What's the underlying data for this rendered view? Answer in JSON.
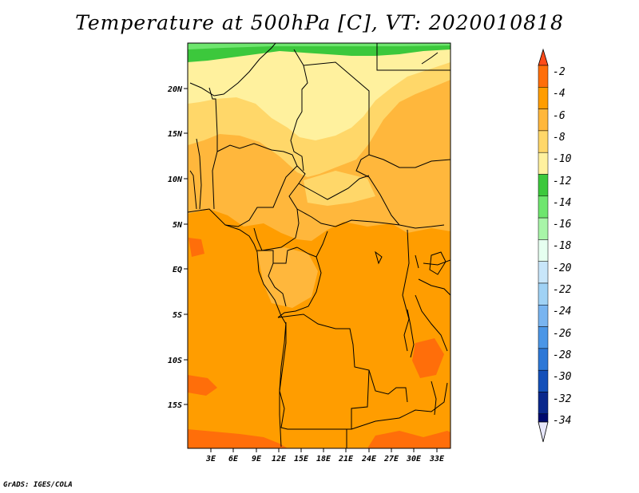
{
  "title": "Temperature at 500hPa [C], VT: 2020010818",
  "footer": "GrADS: IGES/COLA",
  "map": {
    "latitude_labels": [
      "20N",
      "15N",
      "10N",
      "5N",
      "EQ",
      "5S",
      "10S",
      "15S"
    ],
    "longitude_labels": [
      "3E",
      "6E",
      "9E",
      "12E",
      "15E",
      "18E",
      "21E",
      "24E",
      "27E",
      "30E",
      "33E"
    ]
  },
  "colorbar": {
    "labels": [
      "-2",
      "-4",
      "-6",
      "-8",
      "-10",
      "-12",
      "-14",
      "-16",
      "-18",
      "-20",
      "-22",
      "-24",
      "-26",
      "-28",
      "-30",
      "-32",
      "-34"
    ],
    "colors_top_to_bottom": [
      "#ff4b19",
      "#ff6e0a",
      "#ff9d00",
      "#ffb73c",
      "#ffd769",
      "#fff19e",
      "#3cc83c",
      "#6ee66e",
      "#a8f5a8",
      "#e6fff0",
      "#c8e6fa",
      "#a0d2f5",
      "#78b4f0",
      "#4b96e6",
      "#2d78d7",
      "#1450b9",
      "#0a288c",
      "#000a6e",
      "#e6e6fa"
    ]
  },
  "colors": {
    "deep_orange": "#ff6e0a",
    "orange": "#ff9d00",
    "light_orange": "#ffb73c",
    "yellow": "#ffd769",
    "pale_yellow": "#fff19e",
    "green": "#3cc83c",
    "light_green": "#6ee66e"
  }
}
